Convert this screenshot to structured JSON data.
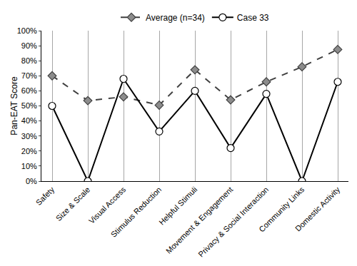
{
  "chart_data": {
    "type": "line",
    "y_label": "Pan-EAT Score",
    "categories": [
      "Safety",
      "Size & Scale",
      "Visual Access",
      "Stimulus Reduction",
      "Helpful Stimuli",
      "Movement & Engagement",
      "Privacy & Social Interaction",
      "Community Links",
      "Domestic Activity"
    ],
    "series": [
      {
        "name": "Average (n=34)",
        "color": "#404040",
        "marker": "diamond",
        "line_style": "dashed",
        "values": [
          70,
          53.5,
          56,
          50.5,
          74,
          54,
          66,
          76,
          87.5
        ]
      },
      {
        "name": "Case 33",
        "color": "#000000",
        "marker": "circle",
        "line_style": "solid",
        "values": [
          50,
          0,
          68,
          33,
          60,
          22,
          58,
          0,
          66
        ]
      }
    ],
    "ylim": [
      0,
      100
    ],
    "yticks": [
      {
        "value": 0,
        "label": "0%"
      },
      {
        "value": 10,
        "label": "10%"
      },
      {
        "value": 20,
        "label": "20%"
      },
      {
        "value": 30,
        "label": "30%"
      },
      {
        "value": 40,
        "label": "40%"
      },
      {
        "value": 50,
        "label": "50%"
      },
      {
        "value": 60,
        "label": "60%"
      },
      {
        "value": 70,
        "label": "70%"
      },
      {
        "value": 80,
        "label": "80%"
      },
      {
        "value": 90,
        "label": "90%"
      },
      {
        "value": 100,
        "label": "100%"
      }
    ],
    "grid": true,
    "legend": "top"
  }
}
